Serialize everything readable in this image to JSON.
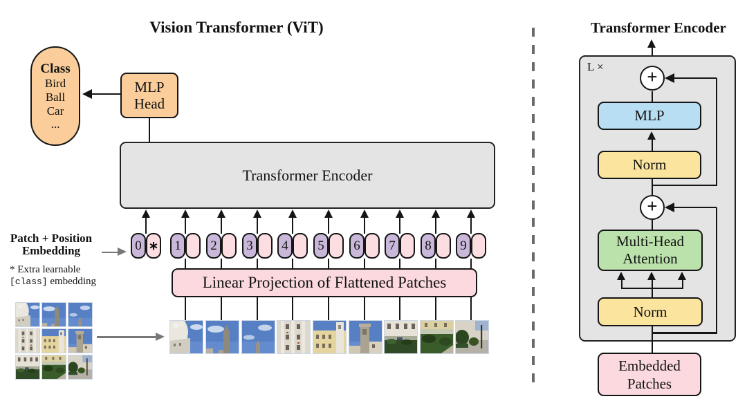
{
  "left": {
    "title": "Vision Transformer (ViT)",
    "class_pill": {
      "heading": "Class",
      "items": [
        "Bird",
        "Ball",
        "Car",
        "..."
      ]
    },
    "mlp_head": {
      "line1": "MLP",
      "line2": "Head"
    },
    "encoder_label": "Transformer Encoder",
    "patch_position_label": {
      "line1": "Patch + Position",
      "line2": "Embedding"
    },
    "footnote": {
      "line1": "* Extra learnable",
      "code": "[class]",
      "line2_rest": "embedding"
    },
    "linear_projection_label": "Linear Projection of Flattened Patches",
    "tokens": [
      "0",
      "1",
      "2",
      "3",
      "4",
      "5",
      "6",
      "7",
      "8",
      "9"
    ],
    "class_token_star": "∗",
    "patch_kinds": [
      "dome-sky",
      "tower-sky",
      "sky-clouds",
      "white-facade",
      "yellow-building",
      "tower",
      "courtyard-hedge",
      "garden-hedge",
      "street-tree"
    ]
  },
  "right": {
    "title": "Transformer Encoder",
    "loop_label": "L ×",
    "plus_symbol": "+",
    "mlp_label": "MLP",
    "norm_top_label": "Norm",
    "attention": {
      "line1": "Multi-Head",
      "line2": "Attention"
    },
    "norm_bottom_label": "Norm",
    "embedded_patches": {
      "line1": "Embedded",
      "line2": "Patches"
    }
  },
  "colors": {
    "orange": "#FACD9A",
    "gray_box": "#E4E4E4",
    "pink_box": "#FBD9DE",
    "purple_token": "#C9B8DA",
    "pink_token": "#FBDDE2",
    "blue_box": "#B7DEF2",
    "yellow_box": "#FAE49E",
    "green_box": "#BCE2AB",
    "divider_gray": "#6A6A6A"
  }
}
